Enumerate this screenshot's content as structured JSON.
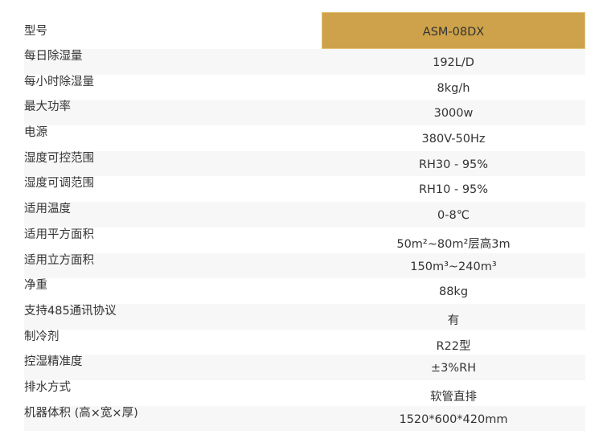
{
  "colors": {
    "header_highlight": "#cda24a",
    "row_shade": "#f7f7f7"
  },
  "specs": [
    {
      "label": "型号",
      "value": "ASM-08DX"
    },
    {
      "label": "每日除湿量",
      "value": "192L/D"
    },
    {
      "label": "每小时除湿量",
      "value": "8kg/h"
    },
    {
      "label": "最大功率",
      "value": "3000w"
    },
    {
      "label": "电源",
      "value": "380V-50Hz"
    },
    {
      "label": "湿度可控范围",
      "value": "RH30 - 95%"
    },
    {
      "label": "湿度可调范围",
      "value": "RH10 - 95%"
    },
    {
      "label": "适用温度",
      "value": "0-8℃"
    },
    {
      "label": "适用平方面积",
      "value": "50m²~80m²层高3m"
    },
    {
      "label": "适用立方面积",
      "value": "150m³~240m³"
    },
    {
      "label": "净重",
      "value": "88kg"
    },
    {
      "label": "支持485通讯协议",
      "value": "有"
    },
    {
      "label": "制冷剂",
      "value": "R22型"
    },
    {
      "label": "控湿精准度",
      "value": "±3%RH"
    },
    {
      "label": "排水方式",
      "value": "软管直排"
    },
    {
      "label": "机器体积 (高×宽×厚)",
      "value": "1520*600*420mm"
    }
  ]
}
